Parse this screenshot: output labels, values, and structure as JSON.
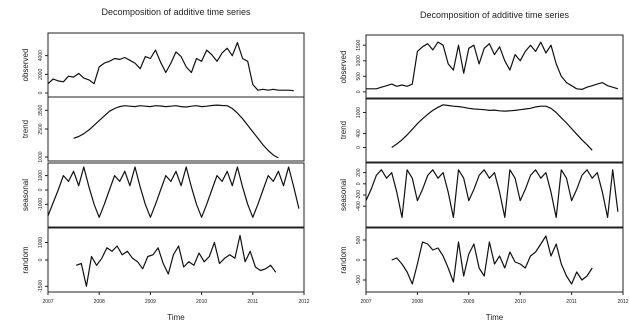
{
  "chart_data": [
    {
      "type": "line",
      "title": "Decomposition of additive time series",
      "xlabel": "Time",
      "xlim": [
        2007,
        2012
      ],
      "x_ticks": [
        "2007",
        "2008",
        "2009",
        "2010",
        "2011",
        "2012"
      ],
      "panels": [
        {
          "name": "observed",
          "ylim": [
            0,
            6000
          ],
          "y_ticks": [
            "0",
            "2000",
            "4000"
          ],
          "x": [
            2007.0,
            2007.1,
            2007.2,
            2007.3,
            2007.4,
            2007.5,
            2007.6,
            2007.7,
            2007.8,
            2007.9,
            2008.0,
            2008.1,
            2008.2,
            2008.3,
            2008.4,
            2008.5,
            2008.6,
            2008.7,
            2008.8,
            2008.9,
            2009.0,
            2009.1,
            2009.2,
            2009.3,
            2009.4,
            2009.5,
            2009.6,
            2009.7,
            2009.8,
            2009.9,
            2010.0,
            2010.1,
            2010.2,
            2010.3,
            2010.4,
            2010.5,
            2010.6,
            2010.7,
            2010.8,
            2010.9,
            2011.0,
            2011.1,
            2011.2,
            2011.3,
            2011.4,
            2011.5,
            2011.6,
            2011.7,
            2011.8
          ],
          "y": [
            1000,
            1500,
            1300,
            1200,
            1800,
            1700,
            2100,
            1600,
            1400,
            1000,
            2800,
            3200,
            3400,
            3700,
            3600,
            3800,
            3500,
            3200,
            2600,
            3900,
            3700,
            4600,
            3300,
            2200,
            3200,
            4400,
            3900,
            2800,
            2200,
            3700,
            3400,
            4600,
            4100,
            3400,
            4300,
            4800,
            4000,
            5400,
            3700,
            3400,
            900,
            300,
            400,
            300,
            400,
            300,
            300,
            300,
            250
          ]
        },
        {
          "name": "trend",
          "ylim": [
            1000,
            4000
          ],
          "y_ticks": [
            "1000",
            "2500",
            "3500"
          ],
          "x": [
            2007.5,
            2007.6,
            2007.7,
            2007.8,
            2007.9,
            2008.0,
            2008.1,
            2008.2,
            2008.3,
            2008.4,
            2008.5,
            2008.6,
            2008.7,
            2008.8,
            2008.9,
            2009.0,
            2009.1,
            2009.2,
            2009.3,
            2009.4,
            2009.5,
            2009.6,
            2009.7,
            2009.8,
            2009.9,
            2010.0,
            2010.1,
            2010.2,
            2010.3,
            2010.4,
            2010.5,
            2010.6,
            2010.7,
            2010.8,
            2010.9,
            2011.0,
            2011.1,
            2011.2,
            2011.3,
            2011.4,
            2011.5
          ],
          "y": [
            2000,
            2100,
            2250,
            2450,
            2700,
            2950,
            3200,
            3450,
            3600,
            3700,
            3750,
            3720,
            3700,
            3750,
            3720,
            3700,
            3750,
            3730,
            3700,
            3720,
            3750,
            3700,
            3680,
            3720,
            3750,
            3700,
            3720,
            3760,
            3780,
            3760,
            3750,
            3600,
            3350,
            3050,
            2700,
            2350,
            2000,
            1650,
            1350,
            1100,
            950
          ]
        },
        {
          "name": "seasonal",
          "ylim": [
            -2300,
            1600
          ],
          "y_ticks": [
            "-1000",
            "0",
            "1000"
          ],
          "x": [
            2007.0,
            2007.1,
            2007.2,
            2007.3,
            2007.4,
            2007.5,
            2007.6,
            2007.7,
            2007.8,
            2007.9,
            2008.0,
            2008.1,
            2008.2,
            2008.3,
            2008.4,
            2008.5,
            2008.6,
            2008.7,
            2008.8,
            2008.9,
            2009.0,
            2009.1,
            2009.2,
            2009.3,
            2009.4,
            2009.5,
            2009.6,
            2009.7,
            2009.8,
            2009.9,
            2010.0,
            2010.1,
            2010.2,
            2010.3,
            2010.4,
            2010.5,
            2010.6,
            2010.7,
            2010.8,
            2010.9,
            2011.0,
            2011.1,
            2011.2,
            2011.3,
            2011.4,
            2011.5,
            2011.6,
            2011.7,
            2011.8,
            2011.9
          ],
          "y": [
            -1800,
            -900,
            0,
            1000,
            600,
            1300,
            300,
            1600,
            200,
            -1000,
            -1900,
            -1000,
            0,
            1000,
            600,
            1300,
            300,
            1600,
            200,
            -1000,
            -1900,
            -1000,
            0,
            1000,
            600,
            1300,
            300,
            1600,
            200,
            -1000,
            -1900,
            -1000,
            0,
            1000,
            600,
            1300,
            300,
            1600,
            200,
            -1000,
            -1900,
            -1000,
            0,
            1000,
            600,
            1300,
            300,
            1600,
            200,
            -1300
          ]
        },
        {
          "name": "random",
          "ylim": [
            -1600,
            1600
          ],
          "y_ticks": [
            "-1500",
            "0",
            "1000"
          ],
          "x": [
            2007.55,
            2007.65,
            2007.75,
            2007.85,
            2007.95,
            2008.05,
            2008.15,
            2008.25,
            2008.35,
            2008.45,
            2008.55,
            2008.65,
            2008.75,
            2008.85,
            2008.95,
            2009.05,
            2009.15,
            2009.25,
            2009.35,
            2009.45,
            2009.55,
            2009.65,
            2009.75,
            2009.85,
            2009.95,
            2010.05,
            2010.15,
            2010.25,
            2010.35,
            2010.45,
            2010.55,
            2010.65,
            2010.75,
            2010.85,
            2010.95,
            2011.05,
            2011.15,
            2011.25,
            2011.35,
            2011.45
          ],
          "y": [
            -300,
            -200,
            -1500,
            200,
            -300,
            100,
            700,
            500,
            800,
            300,
            500,
            100,
            -100,
            -500,
            200,
            300,
            700,
            -200,
            -800,
            300,
            800,
            -400,
            -100,
            -300,
            400,
            -100,
            200,
            1000,
            -200,
            100,
            300,
            100,
            1400,
            -100,
            500,
            -400,
            -600,
            -500,
            -300,
            -700
          ]
        }
      ]
    },
    {
      "type": "line",
      "title": "Decomposition of additive time series",
      "xlabel": "Time",
      "xlim": [
        2007,
        2012
      ],
      "x_ticks": [
        "2007",
        "2008",
        "2009",
        "2010",
        "2011",
        "2012"
      ],
      "panels": [
        {
          "name": "observed",
          "ylim": [
            -100,
            1700
          ],
          "y_ticks": [
            "0",
            "500",
            "1000",
            "1500"
          ],
          "x": [
            2007.0,
            2007.1,
            2007.2,
            2007.3,
            2007.4,
            2007.5,
            2007.6,
            2007.7,
            2007.8,
            2007.9,
            2008.0,
            2008.1,
            2008.2,
            2008.3,
            2008.4,
            2008.5,
            2008.6,
            2008.7,
            2008.8,
            2008.9,
            2009.0,
            2009.1,
            2009.2,
            2009.3,
            2009.4,
            2009.5,
            2009.6,
            2009.7,
            2009.8,
            2009.9,
            2010.0,
            2010.1,
            2010.2,
            2010.3,
            2010.4,
            2010.5,
            2010.6,
            2010.7,
            2010.8,
            2010.9,
            2011.0,
            2011.1,
            2011.2,
            2011.3,
            2011.4,
            2011.5,
            2011.6,
            2011.7,
            2011.8,
            2011.9
          ],
          "y": [
            100,
            100,
            100,
            150,
            200,
            250,
            180,
            220,
            180,
            250,
            1300,
            1450,
            1550,
            1350,
            1600,
            1500,
            900,
            700,
            1500,
            600,
            1400,
            1500,
            900,
            1400,
            1550,
            1200,
            1450,
            1000,
            700,
            1200,
            1000,
            1300,
            1500,
            1300,
            1600,
            1250,
            1500,
            900,
            500,
            300,
            200,
            100,
            80,
            150,
            200,
            250,
            300,
            200,
            150,
            100
          ]
        },
        {
          "name": "trend",
          "ylim": [
            -300,
            1300
          ],
          "y_ticks": [
            "0",
            "400",
            "1000"
          ],
          "x": [
            2007.5,
            2007.6,
            2007.7,
            2007.8,
            2007.9,
            2008.0,
            2008.1,
            2008.2,
            2008.3,
            2008.4,
            2008.5,
            2008.6,
            2008.7,
            2008.8,
            2008.9,
            2009.0,
            2009.1,
            2009.2,
            2009.3,
            2009.4,
            2009.5,
            2009.6,
            2009.7,
            2009.8,
            2009.9,
            2010.0,
            2010.1,
            2010.2,
            2010.3,
            2010.4,
            2010.5,
            2010.6,
            2010.7,
            2010.8,
            2010.9,
            2011.0,
            2011.1,
            2011.2,
            2011.3,
            2011.4
          ],
          "y": [
            0,
            100,
            220,
            360,
            520,
            680,
            820,
            950,
            1060,
            1150,
            1220,
            1200,
            1180,
            1170,
            1150,
            1120,
            1100,
            1090,
            1080,
            1060,
            1070,
            1050,
            1040,
            1050,
            1060,
            1080,
            1100,
            1120,
            1160,
            1180,
            1180,
            1120,
            1000,
            850,
            700,
            540,
            380,
            220,
            80,
            -80
          ]
        },
        {
          "name": "seasonal",
          "ylim": [
            -700,
            300
          ],
          "y_ticks": [
            "-400",
            "-200",
            "0",
            "200"
          ],
          "x": [
            2007.0,
            2007.1,
            2007.2,
            2007.3,
            2007.4,
            2007.5,
            2007.6,
            2007.7,
            2007.8,
            2007.9,
            2008.0,
            2008.1,
            2008.2,
            2008.3,
            2008.4,
            2008.5,
            2008.6,
            2008.7,
            2008.8,
            2008.9,
            2009.0,
            2009.1,
            2009.2,
            2009.3,
            2009.4,
            2009.5,
            2009.6,
            2009.7,
            2009.8,
            2009.9,
            2010.0,
            2010.1,
            2010.2,
            2010.3,
            2010.4,
            2010.5,
            2010.6,
            2010.7,
            2010.8,
            2010.9,
            2011.0,
            2011.1,
            2011.2,
            2011.3,
            2011.4,
            2011.5,
            2011.6,
            2011.7,
            2011.8,
            2011.9
          ],
          "y": [
            -300,
            -100,
            150,
            250,
            100,
            200,
            -150,
            -600,
            250,
            100,
            -300,
            -100,
            150,
            250,
            100,
            200,
            -150,
            -600,
            250,
            100,
            -300,
            -100,
            150,
            250,
            100,
            200,
            -150,
            -600,
            250,
            100,
            -300,
            -100,
            150,
            250,
            100,
            200,
            -150,
            -600,
            250,
            100,
            -300,
            -100,
            150,
            250,
            100,
            200,
            -150,
            -600,
            250,
            -500
          ]
        },
        {
          "name": "random",
          "ylim": [
            -700,
            700
          ],
          "y_ticks": [
            "-500",
            "0",
            "500"
          ],
          "x": [
            2007.5,
            2007.6,
            2007.7,
            2007.8,
            2007.9,
            2008.0,
            2008.1,
            2008.2,
            2008.3,
            2008.4,
            2008.5,
            2008.6,
            2008.7,
            2008.8,
            2008.9,
            2009.0,
            2009.1,
            2009.2,
            2009.3,
            2009.4,
            2009.5,
            2009.6,
            2009.7,
            2009.8,
            2009.9,
            2010.0,
            2010.1,
            2010.2,
            2010.3,
            2010.4,
            2010.5,
            2010.6,
            2010.7,
            2010.8,
            2010.9,
            2011.0,
            2011.1,
            2011.2,
            2011.3,
            2011.4
          ],
          "y": [
            0,
            50,
            -100,
            -300,
            -600,
            -100,
            450,
            400,
            250,
            300,
            100,
            -200,
            -550,
            450,
            -400,
            150,
            400,
            -200,
            -400,
            450,
            -100,
            100,
            -200,
            200,
            -50,
            -100,
            -200,
            100,
            200,
            400,
            600,
            100,
            400,
            -100,
            -400,
            -600,
            -300,
            -500,
            -400,
            -200
          ]
        }
      ]
    }
  ]
}
